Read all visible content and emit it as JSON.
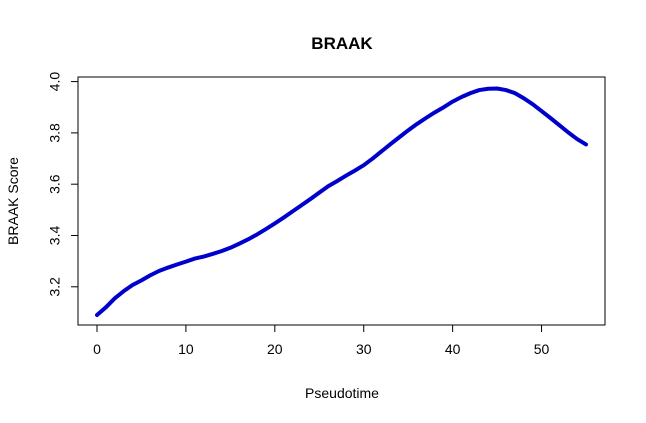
{
  "chart_data": {
    "type": "line",
    "title": "BRAAK",
    "xlabel": "Pseudotime",
    "ylabel": "BRAAK Score",
    "xlim": [
      0,
      55
    ],
    "ylim": [
      3.09,
      3.975
    ],
    "x_ticks": [
      "0",
      "10",
      "20",
      "30",
      "40",
      "50"
    ],
    "y_ticks": [
      "3.2",
      "3.4",
      "3.6",
      "3.8",
      "4.0"
    ],
    "grid": false,
    "line_color": "#0000CD",
    "series": [
      {
        "x": [
          0,
          1,
          2,
          3,
          4,
          5,
          6,
          7,
          8,
          9,
          10,
          11,
          12,
          13,
          14,
          15,
          16,
          17,
          18,
          19,
          20,
          21,
          22,
          23,
          24,
          25,
          26,
          27,
          28,
          29,
          30,
          31,
          32,
          33,
          34,
          35,
          36,
          37,
          38,
          39,
          40,
          41,
          42,
          43,
          44,
          45,
          46,
          47,
          48,
          49,
          50,
          51,
          52,
          53,
          54,
          55
        ],
        "y": [
          3.09,
          3.12,
          3.155,
          3.183,
          3.207,
          3.225,
          3.245,
          3.262,
          3.275,
          3.287,
          3.298,
          3.31,
          3.318,
          3.328,
          3.339,
          3.352,
          3.368,
          3.385,
          3.404,
          3.425,
          3.447,
          3.47,
          3.494,
          3.518,
          3.542,
          3.567,
          3.592,
          3.612,
          3.633,
          3.653,
          3.674,
          3.7,
          3.728,
          3.756,
          3.783,
          3.81,
          3.835,
          3.858,
          3.88,
          3.9,
          3.922,
          3.94,
          3.955,
          3.967,
          3.972,
          3.973,
          3.967,
          3.955,
          3.935,
          3.912,
          3.885,
          3.858,
          3.83,
          3.802,
          3.776,
          3.755
        ]
      }
    ]
  }
}
